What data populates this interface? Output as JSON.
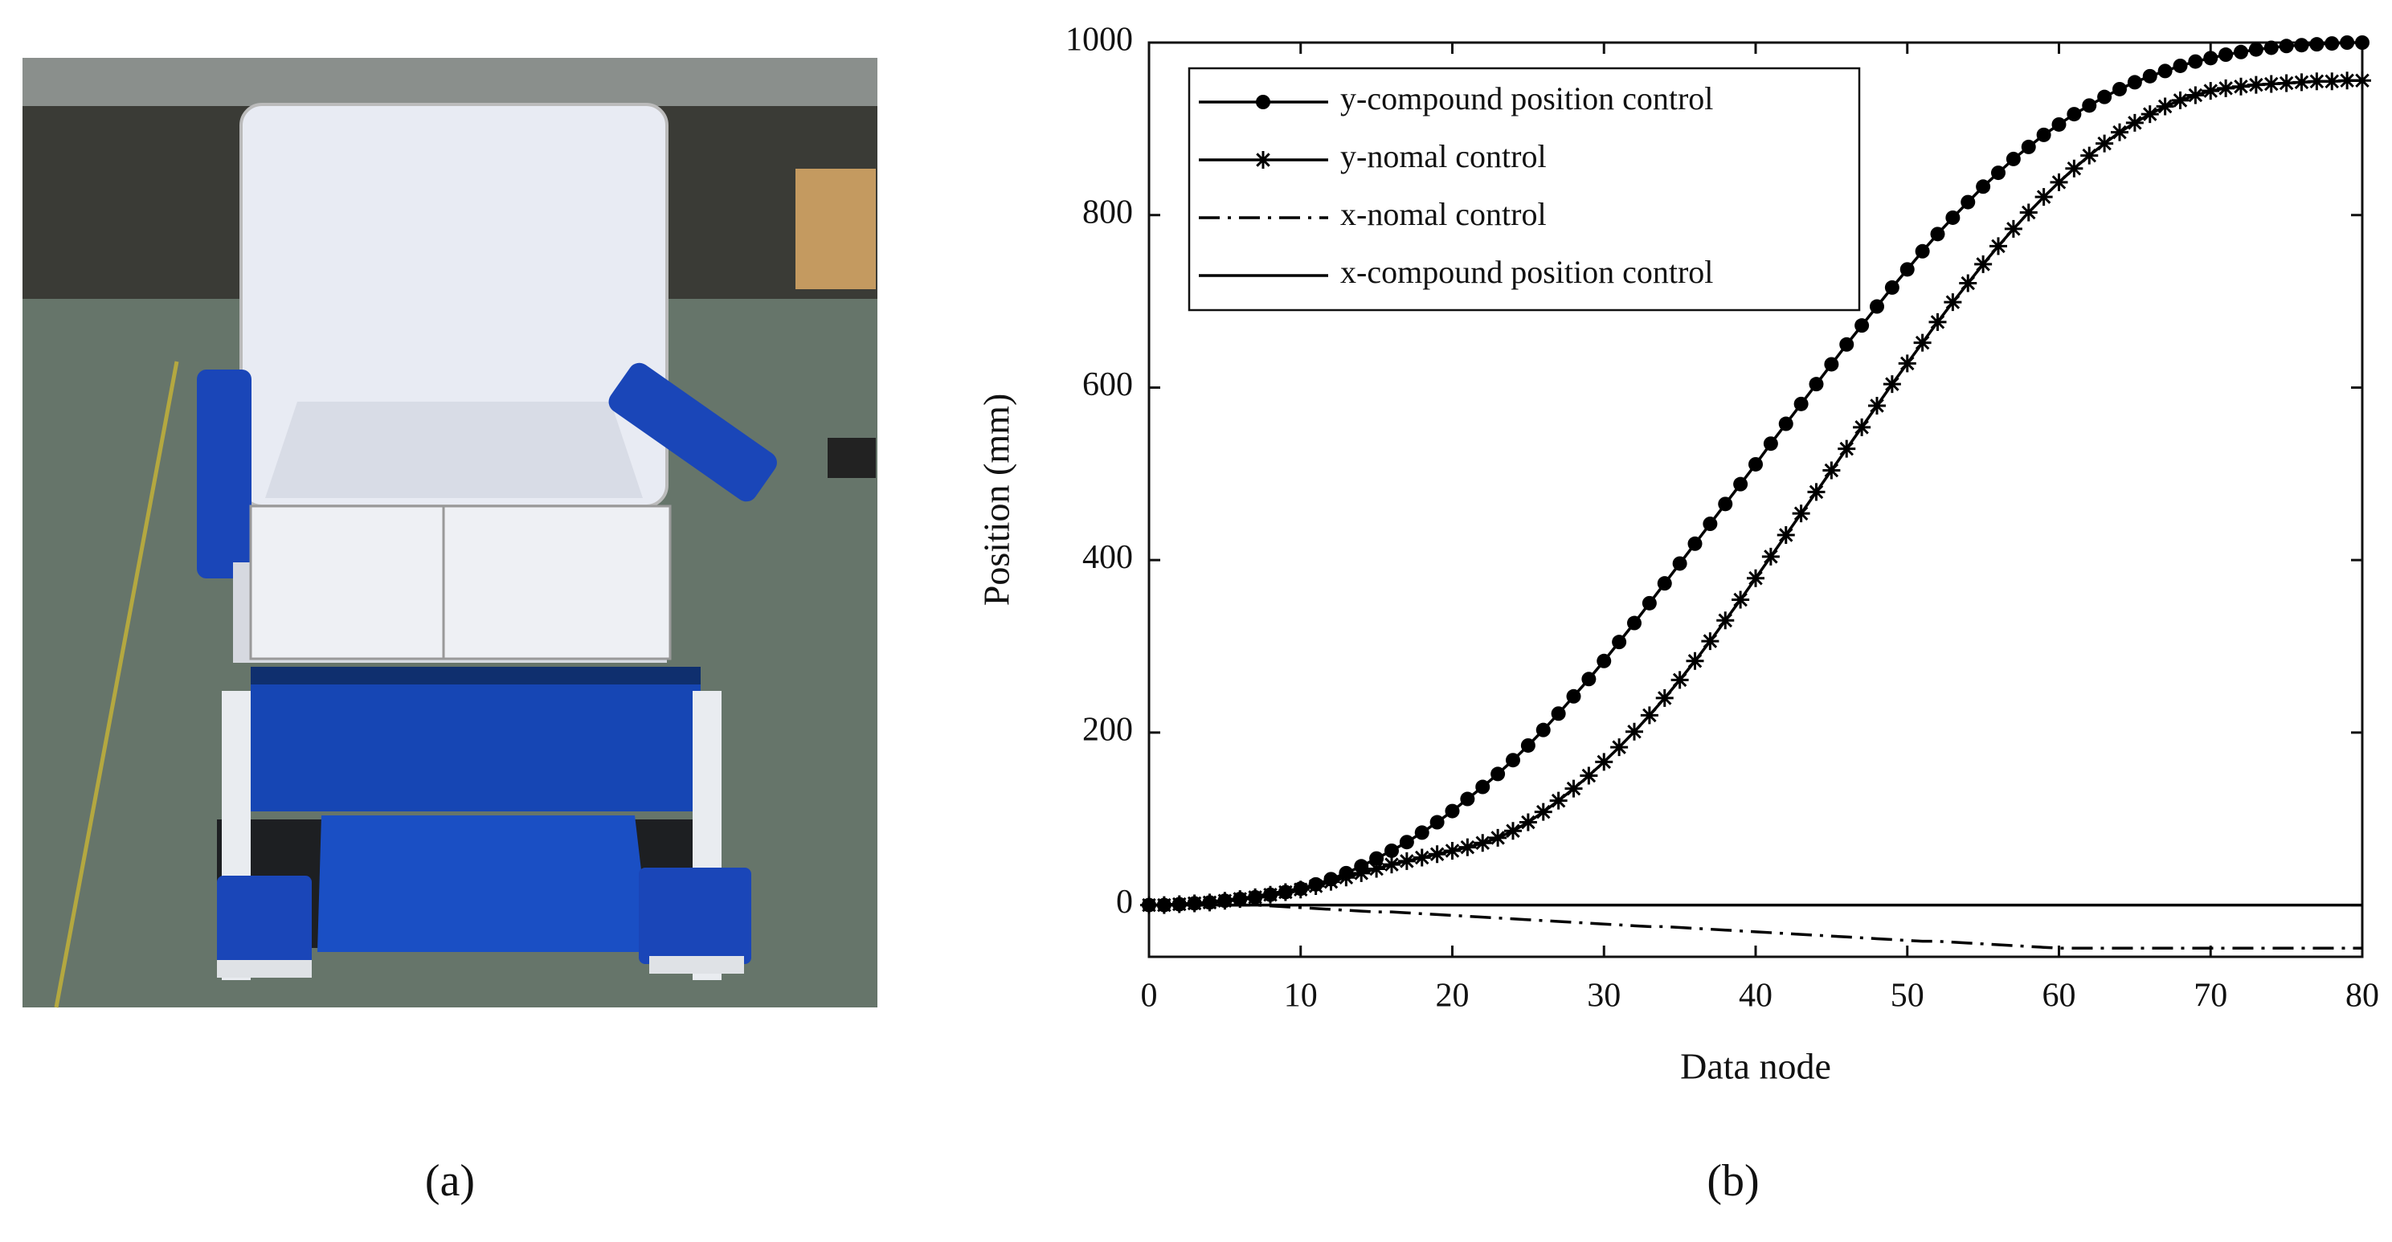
{
  "captions": [
    "(a)",
    "(b)"
  ],
  "chart_data": {
    "type": "line",
    "xlabel": "Data node",
    "ylabel": "Position (mm)",
    "xlim": [
      0,
      80
    ],
    "ylim": [
      -60,
      1000
    ],
    "xticks": [
      0,
      10,
      20,
      30,
      40,
      50,
      60,
      70,
      80
    ],
    "yticks": [
      0,
      200,
      400,
      600,
      800,
      1000
    ],
    "legend": "upper left",
    "x": [
      0,
      1,
      2,
      3,
      4,
      5,
      6,
      7,
      8,
      9,
      10,
      11,
      12,
      13,
      14,
      15,
      16,
      17,
      18,
      19,
      20,
      21,
      22,
      23,
      24,
      25,
      26,
      27,
      28,
      29,
      30,
      31,
      32,
      33,
      34,
      35,
      36,
      37,
      38,
      39,
      40,
      41,
      42,
      43,
      44,
      45,
      46,
      47,
      48,
      49,
      50,
      51,
      52,
      53,
      54,
      55,
      56,
      57,
      58,
      59,
      60,
      61,
      62,
      63,
      64,
      65,
      66,
      67,
      68,
      69,
      70,
      71,
      72,
      73,
      74,
      75,
      76,
      77,
      78,
      79,
      80
    ],
    "series": [
      {
        "name": "y-compound position control",
        "color": "#000000",
        "linestyle": "solid",
        "marker": "o",
        "values": [
          0,
          0,
          1,
          2,
          3,
          5,
          7,
          9,
          12,
          15,
          19,
          24,
          30,
          37,
          45,
          54,
          63,
          73,
          84,
          96,
          109,
          123,
          137,
          152,
          168,
          185,
          203,
          222,
          242,
          262,
          283,
          305,
          327,
          350,
          373,
          396,
          419,
          442,
          465,
          488,
          511,
          535,
          558,
          581,
          604,
          627,
          650,
          672,
          694,
          716,
          737,
          758,
          778,
          797,
          815,
          833,
          849,
          865,
          879,
          893,
          905,
          917,
          927,
          937,
          946,
          954,
          961,
          967,
          973,
          978,
          982,
          986,
          989,
          992,
          994,
          996,
          997,
          998,
          999,
          1000,
          1000
        ]
      },
      {
        "name": "y-nomal control",
        "color": "#000000",
        "linestyle": "solid",
        "marker": "*",
        "values": [
          0,
          0,
          1,
          2,
          3,
          5,
          7,
          9,
          12,
          15,
          18,
          22,
          27,
          32,
          37,
          42,
          47,
          51,
          55,
          59,
          63,
          67,
          72,
          78,
          86,
          96,
          108,
          121,
          135,
          150,
          166,
          183,
          201,
          220,
          240,
          261,
          283,
          306,
          330,
          354,
          379,
          404,
          429,
          454,
          479,
          504,
          529,
          554,
          579,
          604,
          628,
          652,
          676,
          699,
          721,
          743,
          764,
          784,
          803,
          821,
          838,
          854,
          869,
          883,
          896,
          907,
          917,
          926,
          933,
          939,
          944,
          947,
          949,
          951,
          952,
          953,
          954,
          955,
          955,
          956,
          956
        ]
      },
      {
        "name": "x-nomal control",
        "color": "#000000",
        "linestyle": "dashdot",
        "values": [
          0,
          0,
          0,
          0,
          0,
          0,
          0,
          0,
          -1,
          -2,
          -3,
          -4,
          -5,
          -6,
          -7,
          -8,
          -8,
          -9,
          -10,
          -11,
          -12,
          -13,
          -14,
          -15,
          -16,
          -17,
          -18,
          -19,
          -20,
          -21,
          -22,
          -23,
          -24,
          -25,
          -25,
          -26,
          -27,
          -28,
          -29,
          -30,
          -31,
          -32,
          -33,
          -34,
          -35,
          -36,
          -37,
          -38,
          -39,
          -40,
          -41,
          -42,
          -42,
          -43,
          -44,
          -45,
          -46,
          -47,
          -48,
          -49,
          -50,
          -50,
          -50,
          -50,
          -50,
          -50,
          -50,
          -50,
          -50,
          -50,
          -50,
          -50,
          -50,
          -50,
          -50,
          -50,
          -50,
          -50,
          -50,
          -50,
          -50
        ]
      },
      {
        "name": "x-compound position control",
        "color": "#000000",
        "linestyle": "solid",
        "values": [
          0,
          0,
          0,
          0,
          0,
          0,
          0,
          0,
          0,
          0,
          0,
          0,
          0,
          0,
          0,
          0,
          0,
          0,
          0,
          0,
          0,
          0,
          0,
          0,
          0,
          0,
          0,
          0,
          0,
          0,
          0,
          0,
          0,
          0,
          0,
          0,
          0,
          0,
          0,
          0,
          0,
          0,
          0,
          0,
          0,
          0,
          0,
          0,
          0,
          0,
          0,
          0,
          0,
          0,
          0,
          0,
          0,
          0,
          0,
          0,
          0,
          0,
          0,
          0,
          0,
          0,
          0,
          0,
          0,
          0,
          0,
          0,
          0,
          0,
          0,
          0,
          0,
          0,
          0,
          0,
          0
        ]
      }
    ]
  }
}
